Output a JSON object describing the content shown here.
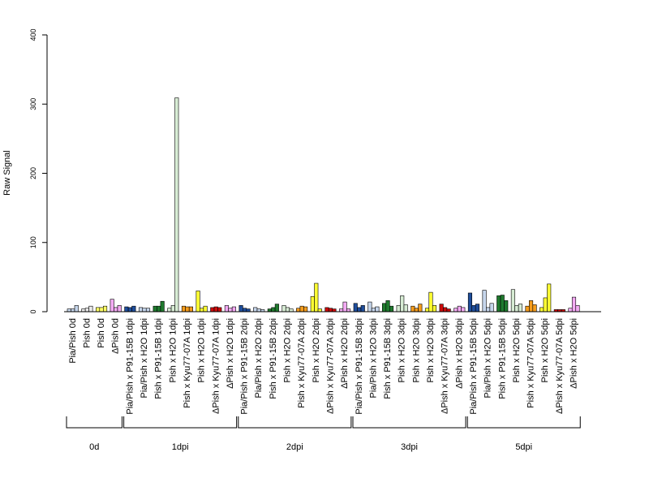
{
  "chart_data": {
    "type": "bar",
    "ylabel": "Raw Signal",
    "ylim": [
      0,
      400
    ],
    "yticks": [
      0,
      100,
      200,
      300,
      400
    ],
    "replicates_per_category": 3,
    "categories": [
      {
        "label": "Pia/Pish 0d",
        "color": "#c6d6ec",
        "values": [
          4,
          4,
          9
        ]
      },
      {
        "label": "Pish 0d",
        "color": "#e9e9e9",
        "values": [
          4,
          5,
          8
        ]
      },
      {
        "label": "Pish 0d",
        "color": "#ffff66",
        "values": [
          6,
          6,
          8
        ]
      },
      {
        "label": "ΔPish 0d",
        "color": "#f4aaf4",
        "values": [
          18,
          6,
          9
        ]
      },
      {
        "label": "Pia/Pish x P91-15B 1dpi",
        "color": "#1f4e9c",
        "values": [
          7,
          6,
          8
        ]
      },
      {
        "label": "Pia/Pish x H2O 1dpi",
        "color": "#c6d6ec",
        "values": [
          6,
          5,
          5
        ]
      },
      {
        "label": "Pish x P91-15B 1dpi",
        "color": "#1f7a2e",
        "values": [
          8,
          8,
          15
        ]
      },
      {
        "label": "Pish x H2O 1dpi",
        "color": "#d7ecd4",
        "values": [
          5,
          9,
          309
        ]
      },
      {
        "label": "Pish x Kyu77-07A 1dpi",
        "color": "#f59d1d",
        "values": [
          8,
          7,
          7
        ]
      },
      {
        "label": "Pish x H2O 1dpi",
        "color": "#ffff33",
        "values": [
          30,
          5,
          8
        ]
      },
      {
        "label": "ΔPish x Kyu77-07A 1dpi",
        "color": "#cc0c0c",
        "values": [
          6,
          7,
          6
        ]
      },
      {
        "label": "ΔPish x H2O 1dpi",
        "color": "#f4aaf4",
        "values": [
          9,
          5,
          7
        ]
      },
      {
        "label": "Pia/Pish x P91-15B 2dpi",
        "color": "#1f4e9c",
        "values": [
          9,
          5,
          4
        ]
      },
      {
        "label": "Pia/Pish x H2O 2dpi",
        "color": "#c6d6ec",
        "values": [
          6,
          4,
          3
        ]
      },
      {
        "label": "Pish x P91-15B 2dpi",
        "color": "#1f7a2e",
        "values": [
          4,
          6,
          11
        ]
      },
      {
        "label": "Pish x H2O 2dpi",
        "color": "#d7ecd4",
        "values": [
          9,
          6,
          4
        ]
      },
      {
        "label": "Pish x Kyu77-07A 2dpi",
        "color": "#f59d1d",
        "values": [
          5,
          8,
          7
        ]
      },
      {
        "label": "Pish x H2O 2dpi",
        "color": "#ffff33",
        "values": [
          22,
          41,
          4
        ]
      },
      {
        "label": "ΔPish x Kyu77-07A 2dpi",
        "color": "#cc0c0c",
        "values": [
          6,
          5,
          4
        ]
      },
      {
        "label": "ΔPish x H2O 2dpi",
        "color": "#f4aaf4",
        "values": [
          4,
          14,
          4
        ]
      },
      {
        "label": "Pia/Pish x P91-15B 3dpi",
        "color": "#1f4e9c",
        "values": [
          12,
          6,
          9
        ]
      },
      {
        "label": "Pia/Pish x H2O 3dpi",
        "color": "#c6d6ec",
        "values": [
          14,
          5,
          7
        ]
      },
      {
        "label": "Pish x P91-15B 3dpi",
        "color": "#1f7a2e",
        "values": [
          12,
          16,
          8
        ]
      },
      {
        "label": "Pish x H2O 3dpi",
        "color": "#d7ecd4",
        "values": [
          9,
          23,
          10
        ]
      },
      {
        "label": "Pish x H2O 3dpi",
        "color": "#f59d1d",
        "values": [
          8,
          5,
          11
        ]
      },
      {
        "label": "Pish x H2O 3dpi",
        "color": "#ffff33",
        "values": [
          5,
          28,
          9
        ]
      },
      {
        "label": "ΔPish x Kyu77-07A 3dpi",
        "color": "#cc0c0c",
        "values": [
          11,
          6,
          4
        ]
      },
      {
        "label": "ΔPish x H2O 3dpi",
        "color": "#f4aaf4",
        "values": [
          5,
          8,
          6
        ]
      },
      {
        "label": "Pia/Pish x P91-15B 5dpi",
        "color": "#1f4e9c",
        "values": [
          27,
          9,
          11
        ]
      },
      {
        "label": "Pia/Pish x H2O 5dpi",
        "color": "#c6d6ec",
        "values": [
          31,
          6,
          12
        ]
      },
      {
        "label": "Pish x P91-15B 5dpi",
        "color": "#1f7a2e",
        "values": [
          23,
          24,
          16
        ]
      },
      {
        "label": "Pish x H2O 5dpi",
        "color": "#d7ecd4",
        "values": [
          32,
          9,
          11
        ]
      },
      {
        "label": "Pish x Kyu77-07A 5dpi",
        "color": "#f59d1d",
        "values": [
          8,
          16,
          10
        ]
      },
      {
        "label": "Pish x H2O 5dpi",
        "color": "#ffff33",
        "values": [
          6,
          20,
          40
        ]
      },
      {
        "label": "ΔPish x Kyu77-07A 5dpi",
        "color": "#cc0c0c",
        "values": [
          3,
          3,
          3
        ]
      },
      {
        "label": "ΔPish x H2O 5dpi",
        "color": "#f4aaf4",
        "values": [
          5,
          21,
          9
        ]
      }
    ],
    "groups": [
      {
        "label": "0d",
        "first": 0,
        "last": 3
      },
      {
        "label": "1dpi",
        "first": 4,
        "last": 11
      },
      {
        "label": "2dpi",
        "first": 12,
        "last": 19
      },
      {
        "label": "3dpi",
        "first": 20,
        "last": 27
      },
      {
        "label": "5dpi",
        "first": 28,
        "last": 35
      }
    ]
  }
}
